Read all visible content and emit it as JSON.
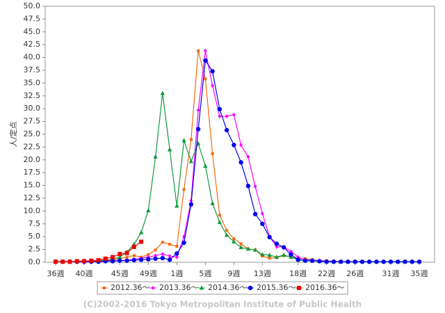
{
  "chart_data": {
    "type": "line",
    "y_label": "人/定点",
    "copyright": "(C)2002-2016 Tokyo Metropolitan Institute of Public Health",
    "categories": [
      "36週",
      null,
      null,
      null,
      "40週",
      null,
      null,
      null,
      null,
      "45週",
      null,
      null,
      null,
      "49週",
      null,
      null,
      null,
      "1週",
      null,
      null,
      null,
      "5週",
      null,
      null,
      null,
      "9週",
      null,
      null,
      null,
      "13週",
      null,
      null,
      null,
      null,
      "18週",
      null,
      null,
      null,
      "22週",
      null,
      null,
      null,
      "26週",
      null,
      null,
      null,
      null,
      "31週",
      null,
      null,
      null,
      "35週"
    ],
    "ylim": [
      0,
      50
    ],
    "yticks": [
      {
        "value": 0,
        "label": "0.0"
      },
      {
        "value": 2.5,
        "label": "2.5"
      },
      {
        "value": 5,
        "label": "5.0"
      },
      {
        "value": 7.5,
        "label": "7.5"
      },
      {
        "value": 10,
        "label": "10.0"
      },
      {
        "value": 12.5,
        "label": "12.5"
      },
      {
        "value": 15,
        "label": "15.0"
      },
      {
        "value": 17.5,
        "label": "17.5"
      },
      {
        "value": 20,
        "label": "20.0"
      },
      {
        "value": 22.5,
        "label": "22.5"
      },
      {
        "value": 25,
        "label": "25.0"
      },
      {
        "value": 27.5,
        "label": "27.5"
      },
      {
        "value": 30,
        "label": "30.0"
      },
      {
        "value": 32.5,
        "label": "32.5"
      },
      {
        "value": 35,
        "label": "35.0"
      },
      {
        "value": 37.5,
        "label": "37.5"
      },
      {
        "value": 40,
        "label": "40.0"
      },
      {
        "value": 42.5,
        "label": "42.5"
      },
      {
        "value": 45,
        "label": "45.0"
      },
      {
        "value": 47.5,
        "label": "47.5"
      },
      {
        "value": 50,
        "label": "50.0"
      }
    ],
    "grid": false,
    "legend": "bottom",
    "series": [
      {
        "name": "2012.36～",
        "color": "#f26b0f",
        "marker": "square",
        "values": [
          0.1,
          0.1,
          0.1,
          0.1,
          0.1,
          0.2,
          0.2,
          0.3,
          0.4,
          0.7,
          1.0,
          1.3,
          1.0,
          1.5,
          2.4,
          3.9,
          3.5,
          3.1,
          14.2,
          24.0,
          41.3,
          35.8,
          21.2,
          9.2,
          6.2,
          4.6,
          3.6,
          2.6,
          2.4,
          1.2,
          0.8,
          0.9,
          1.3,
          1.0,
          0.7,
          0.7,
          0.5,
          0.3,
          0.3,
          0.2,
          0.1,
          0.1,
          0.1,
          0.1,
          0.1,
          0.1,
          0.1,
          0.1,
          0.1,
          0.1,
          0.1,
          0.0
        ]
      },
      {
        "name": "2013.36～",
        "color": "#ff00ff",
        "marker": "diamond",
        "values": [
          0.1,
          0.1,
          0.1,
          0.1,
          0.1,
          0.1,
          0.2,
          0.2,
          0.3,
          0.3,
          0.4,
          0.6,
          0.8,
          1.0,
          1.3,
          1.6,
          1.2,
          1.0,
          5.0,
          12.0,
          29.7,
          41.3,
          34.5,
          28.5,
          28.5,
          28.8,
          22.9,
          20.6,
          14.8,
          9.5,
          5.0,
          3.0,
          3.0,
          2.1,
          1.0,
          0.5,
          0.4,
          0.3,
          0.2,
          0.1,
          0.1,
          0.1,
          0.1,
          0.1,
          0.1,
          0.1,
          0.1,
          0.1,
          0.1,
          0.1,
          0.1,
          0.1
        ]
      },
      {
        "name": "2014.36～",
        "color": "#109a3a",
        "marker": "triangle",
        "values": [
          0.1,
          0.1,
          0.1,
          0.1,
          0.2,
          0.2,
          0.3,
          0.4,
          0.6,
          1.0,
          2.0,
          3.5,
          5.8,
          10.1,
          20.6,
          33.0,
          22.0,
          11.0,
          23.8,
          19.7,
          23.2,
          18.8,
          11.5,
          7.8,
          5.3,
          4.0,
          2.9,
          2.6,
          2.4,
          1.5,
          1.4,
          1.0,
          1.4,
          1.0,
          0.5,
          0.4,
          0.3,
          0.2,
          0.1,
          0.1,
          0.1,
          0.1,
          0.1,
          0.1,
          0.1,
          0.1,
          0.1,
          0.1,
          0.1,
          0.1,
          0.1,
          0.1
        ]
      },
      {
        "name": "2015.36～",
        "color": "#0000ee",
        "marker": "circle",
        "values": [
          0.1,
          0.1,
          0.1,
          0.1,
          0.1,
          0.1,
          0.1,
          0.2,
          0.2,
          0.3,
          0.3,
          0.4,
          0.5,
          0.6,
          0.7,
          0.8,
          0.5,
          1.7,
          3.8,
          11.3,
          26.0,
          39.4,
          37.3,
          29.9,
          25.8,
          22.9,
          19.5,
          14.9,
          9.4,
          7.5,
          4.9,
          3.6,
          2.9,
          1.5,
          0.5,
          0.3,
          0.3,
          0.2,
          0.1,
          0.1,
          0.1,
          0.1,
          0.1,
          0.1,
          0.1,
          0.1,
          0.1,
          0.1,
          0.1,
          0.1,
          0.1,
          0.1
        ]
      },
      {
        "name": "2016.36～",
        "color": "#ee0000",
        "marker": "bigsquare",
        "values": [
          0.1,
          0.1,
          0.1,
          0.2,
          0.2,
          0.3,
          0.4,
          0.7,
          1.0,
          1.6,
          1.8,
          3.0,
          4.0,
          null,
          null,
          null,
          null,
          null,
          null,
          null,
          null,
          null,
          null,
          null,
          null,
          null,
          null,
          null,
          null,
          null,
          null,
          null,
          null,
          null,
          null,
          null,
          null,
          null,
          null,
          null,
          null,
          null,
          null,
          null,
          null,
          null,
          null,
          null,
          null,
          null,
          null,
          null
        ]
      }
    ]
  }
}
